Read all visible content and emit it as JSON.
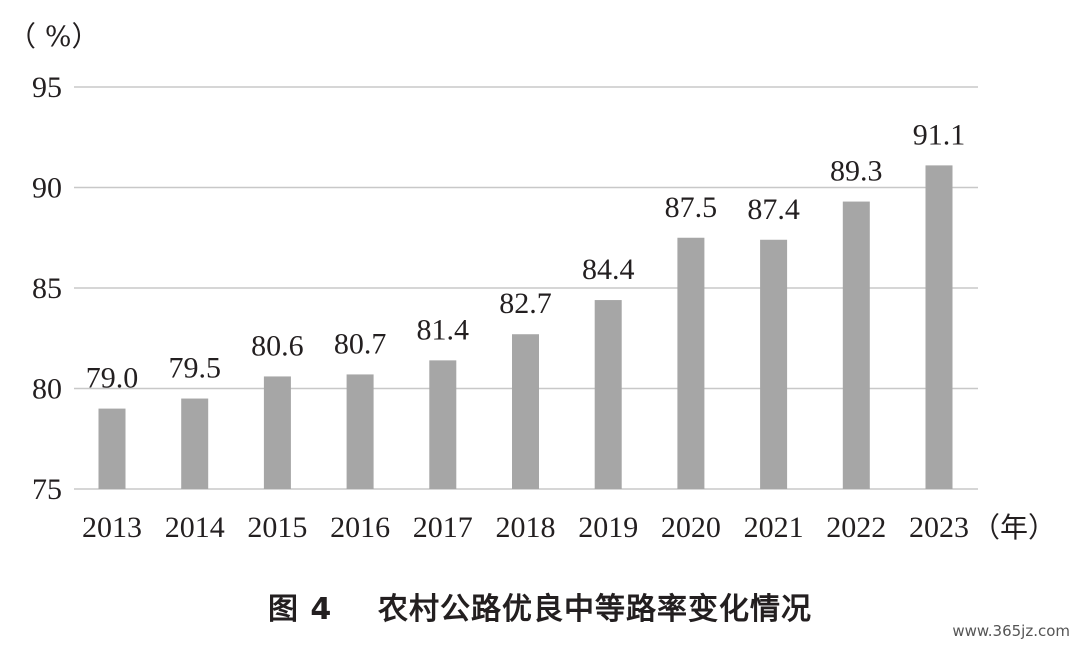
{
  "chart_data": {
    "type": "bar",
    "title": "图 4    农村公路优良中等路率变化情况",
    "ylabel": "（ %）",
    "xlabel": "（年）",
    "categories": [
      "2013",
      "2014",
      "2015",
      "2016",
      "2017",
      "2018",
      "2019",
      "2020",
      "2021",
      "2022",
      "2023"
    ],
    "values": [
      79.0,
      79.5,
      80.6,
      80.7,
      81.4,
      82.7,
      84.4,
      87.5,
      87.4,
      89.3,
      91.1
    ],
    "data_labels": [
      "79.0",
      "79.5",
      "80.6",
      "80.7",
      "81.4",
      "82.7",
      "84.4",
      "87.5",
      "87.4",
      "89.3",
      "91.1"
    ],
    "ylim": [
      75,
      95
    ],
    "yticks": [
      "75",
      "80",
      "85",
      "90",
      "95"
    ],
    "grid": true,
    "legend": "none",
    "bar_color": "#a6a6a6",
    "grid_color": "#c8c8c8"
  },
  "watermark": "www.365jz.com"
}
